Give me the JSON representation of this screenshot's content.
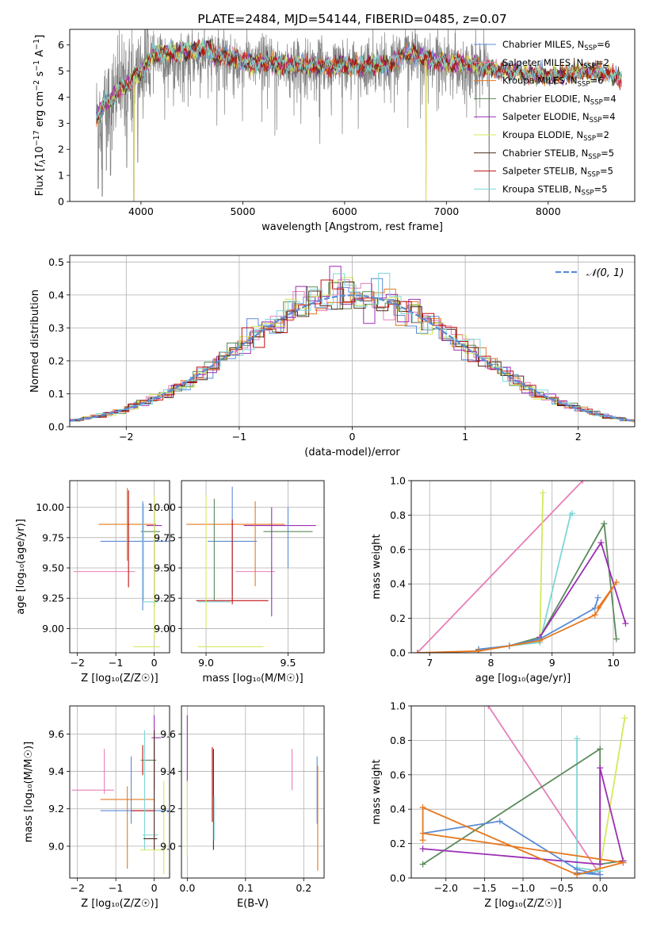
{
  "colors": {
    "chabrier_miles": "#5b8bd6",
    "salpeter_miles": "#e67fb8",
    "kroupa_miles": "#e6781e",
    "chabrier_elodie": "#5b8a5b",
    "salpeter_elodie": "#9a2fb4",
    "kroupa_elodie": "#d4e85a",
    "chabrier_stelib": "#4a2a1a",
    "salpeter_stelib": "#c01010",
    "kroupa_stelib": "#7fd6d6",
    "gray": "#808080",
    "gauss": "#5b8bd6"
  },
  "chart_data": [
    {
      "id": "spectrum",
      "type": "line",
      "title": "PLATE=2484, MJD=54144, FIBERID=0485, z=0.07",
      "xlabel": "wavelength [Angstrom, rest frame]",
      "ylabel_main": "Flux [",
      "ylabel_f": "f",
      "ylabel_sub": "λ",
      "ylabel_rest": "10",
      "ylabel_sup": "−17",
      "ylabel_units": " erg cm",
      "ylabel_sup2": "−2",
      "ylabel_s": " s",
      "ylabel_sup3": "−1",
      "ylabel_A": " A",
      "ylabel_sup4": "−1",
      "ylabel_close": "]",
      "xlim": [
        3300,
        8850
      ],
      "ylim": [
        0,
        6.6
      ],
      "xticks": [
        4000,
        5000,
        6000,
        7000,
        8000
      ],
      "yticks": [
        0,
        1,
        2,
        3,
        4,
        5,
        6
      ],
      "legend": [
        {
          "name": "Chabrier MILES, N",
          "sub": "SSP",
          "eq": "=6",
          "color": "chabrier_miles"
        },
        {
          "name": "Salpeter MILES, N",
          "sub": "SSP",
          "eq": "=2",
          "color": "salpeter_miles"
        },
        {
          "name": "Kroupa MILES, N",
          "sub": "SSP",
          "eq": "=6",
          "color": "kroupa_miles"
        },
        {
          "name": "Chabrier ELODIE, N",
          "sub": "SSP",
          "eq": "=4",
          "color": "chabrier_elodie"
        },
        {
          "name": "Salpeter ELODIE, N",
          "sub": "SSP",
          "eq": "=4",
          "color": "salpeter_elodie"
        },
        {
          "name": "Kroupa ELODIE, N",
          "sub": "SSP",
          "eq": "=2",
          "color": "kroupa_elodie"
        },
        {
          "name": "Chabrier STELIB, N",
          "sub": "SSP",
          "eq": "=5",
          "color": "chabrier_stelib"
        },
        {
          "name": "Salpeter STELIB, N",
          "sub": "SSP",
          "eq": "=5",
          "color": "salpeter_stelib"
        },
        {
          "name": "Kroupa STELIB, N",
          "sub": "SSP",
          "eq": "=5",
          "color": "kroupa_stelib"
        }
      ],
      "legend_loc": "right",
      "continuum": [
        [
          3560,
          3.3
        ],
        [
          3650,
          3.7
        ],
        [
          3800,
          4.3
        ],
        [
          3950,
          4.8
        ],
        [
          4100,
          5.4
        ],
        [
          4300,
          5.4
        ],
        [
          4500,
          5.5
        ],
        [
          4700,
          5.6
        ],
        [
          4900,
          5.5
        ],
        [
          5100,
          5.3
        ],
        [
          5300,
          5.3
        ],
        [
          5600,
          5.2
        ],
        [
          5900,
          5.2
        ],
        [
          6200,
          5.2
        ],
        [
          6500,
          5.3
        ],
        [
          6600,
          5.7
        ],
        [
          6800,
          5.5
        ],
        [
          7000,
          5.3
        ],
        [
          7200,
          5.3
        ],
        [
          7400,
          5.1
        ],
        [
          7600,
          5.0
        ],
        [
          7800,
          4.9
        ],
        [
          8000,
          4.8
        ],
        [
          8200,
          4.9
        ],
        [
          8400,
          5.0
        ],
        [
          8600,
          4.9
        ],
        [
          8720,
          4.7
        ]
      ],
      "noise_end": 7420,
      "data_start": 3560,
      "dips": [
        [
          3580,
          0.5
        ],
        [
          3620,
          0.2
        ],
        [
          3660,
          1.2
        ],
        [
          3700,
          1.0
        ],
        [
          3860,
          1.3
        ],
        [
          3930,
          0
        ],
        [
          3968,
          1.5
        ],
        [
          7420,
          0
        ]
      ],
      "model_dips": [
        [
          3930,
          0
        ],
        [
          6800,
          0
        ]
      ]
    },
    {
      "id": "hist",
      "type": "bar",
      "xlabel": "(data-model)/error",
      "ylabel": "Normed distribution",
      "xlim": [
        -2.5,
        2.5
      ],
      "ylim": [
        0,
        0.52
      ],
      "xticks": [
        -2,
        -1,
        0,
        1,
        2
      ],
      "yticks": [
        0.0,
        0.1,
        0.2,
        0.3,
        0.4,
        0.5
      ],
      "legend": {
        "name": "𝒩(0, 1)",
        "loc": "top-right"
      },
      "bin_width": 0.1
    },
    {
      "id": "age_z",
      "type": "scatter",
      "xlabel": "Z [log₁₀(Z/Z☉)]",
      "ylabel": "age  [log₁₀(age/yr)]",
      "xlim": [
        -2.2,
        0.4
      ],
      "ylim": [
        8.8,
        10.22
      ],
      "xticks": [
        -2,
        -1,
        0
      ],
      "yticks": [
        9.0,
        9.25,
        9.5,
        9.75,
        10.0
      ],
      "points": [
        {
          "x": -1.3,
          "y": 9.47,
          "xerr": 0.8,
          "yerr": 0.0,
          "color": "salpeter_miles"
        },
        {
          "x": -0.5,
          "y": 9.72,
          "xerr": 0.9,
          "yerr": 0.0,
          "color": "chabrier_miles"
        },
        {
          "x": -0.7,
          "y": 9.86,
          "xerr": 0.75,
          "yerr": 0.3,
          "color": "kroupa_miles"
        },
        {
          "x": -0.67,
          "y": 9.74,
          "xerr": 0.0,
          "yerr": 0.4,
          "color": "salpeter_stelib"
        },
        {
          "x": -0.1,
          "y": 9.8,
          "xerr": 0.25,
          "yerr": 0.0,
          "color": "chabrier_elodie"
        },
        {
          "x": -0.3,
          "y": 9.6,
          "xerr": 0.0,
          "yerr": 0.45,
          "color": "chabrier_miles"
        },
        {
          "x": 0.0,
          "y": 9.85,
          "xerr": 0.2,
          "yerr": 0.0,
          "color": "salpeter_elodie"
        },
        {
          "x": -0.28,
          "y": 9.63,
          "xerr": 0.0,
          "yerr": 0.4,
          "color": "kroupa_stelib"
        },
        {
          "x": 0.0,
          "y": 9.6,
          "xerr": 0.0,
          "yerr": 0.42,
          "color": "chabrier_stelib"
        },
        {
          "x": -0.1,
          "y": 9.22,
          "xerr": 0.2,
          "yerr": 0.0,
          "color": "kroupa_stelib"
        },
        {
          "x": 0.0,
          "y": 9.5,
          "xerr": 0.0,
          "yerr": 0.6,
          "color": "kroupa_elodie"
        },
        {
          "x": -0.2,
          "y": 8.85,
          "xerr": 0.35,
          "yerr": 0.0,
          "color": "kroupa_elodie"
        }
      ]
    },
    {
      "id": "age_mass",
      "type": "scatter",
      "xlabel": "mass [log₁₀(M/M☉)]",
      "ylabel": "",
      "xlim": [
        8.85,
        9.72
      ],
      "ylim": [
        8.8,
        10.22
      ],
      "xticks": [
        9.0,
        9.5
      ],
      "yticks": [
        9.0,
        9.25,
        9.5,
        9.75,
        10.0
      ],
      "points": [
        {
          "x": 9.18,
          "y": 9.86,
          "xerr": 0.3,
          "yerr": 0.0,
          "color": "kroupa_miles"
        },
        {
          "x": 9.45,
          "y": 9.85,
          "xerr": 0.22,
          "yerr": 0.0,
          "color": "salpeter_elodie"
        },
        {
          "x": 9.5,
          "y": 9.8,
          "xerr": 0.15,
          "yerr": 0.0,
          "color": "chabrier_elodie"
        },
        {
          "x": 9.16,
          "y": 9.72,
          "xerr": 0.15,
          "yerr": 0.0,
          "color": "chabrier_miles"
        },
        {
          "x": 9.3,
          "y": 9.47,
          "xerr": 0.12,
          "yerr": 0.0,
          "color": "salpeter_miles"
        },
        {
          "x": 9.16,
          "y": 9.23,
          "xerr": 0.22,
          "yerr": 0.0,
          "color": "salpeter_stelib"
        },
        {
          "x": 9.05,
          "y": 9.22,
          "xerr": 0.1,
          "yerr": 0.0,
          "color": "kroupa_stelib"
        },
        {
          "x": 9.15,
          "y": 8.85,
          "xerr": 0.2,
          "yerr": 0.0,
          "color": "kroupa_elodie"
        },
        {
          "x": 9.0,
          "y": 9.55,
          "xerr": 0.0,
          "yerr": 0.55,
          "color": "kroupa_elodie"
        },
        {
          "x": 9.05,
          "y": 9.65,
          "xerr": 0.0,
          "yerr": 0.42,
          "color": "chabrier_elodie"
        },
        {
          "x": 9.16,
          "y": 9.72,
          "xerr": 0.0,
          "yerr": 0.45,
          "color": "chabrier_miles"
        },
        {
          "x": 9.16,
          "y": 9.55,
          "xerr": 0.0,
          "yerr": 0.35,
          "color": "salpeter_stelib"
        },
        {
          "x": 9.4,
          "y": 9.55,
          "xerr": 0.0,
          "yerr": 0.45,
          "color": "salpeter_elodie"
        },
        {
          "x": 9.3,
          "y": 9.7,
          "xerr": 0.0,
          "yerr": 0.35,
          "color": "kroupa_miles"
        },
        {
          "x": 9.5,
          "y": 9.75,
          "xerr": 0.0,
          "yerr": 0.25,
          "color": "chabrier_miles"
        }
      ]
    },
    {
      "id": "mw_age",
      "type": "line",
      "xlabel": "age  [log₁₀(age/yr)]",
      "ylabel": "mass weight",
      "xlim": [
        6.7,
        10.35
      ],
      "ylim": [
        0,
        1.0
      ],
      "xticks": [
        7,
        8,
        9,
        10
      ],
      "yticks": [
        0.0,
        0.2,
        0.4,
        0.6,
        0.8,
        1.0
      ],
      "series": [
        {
          "color": "salpeter_miles",
          "x": [
            6.8,
            9.5
          ],
          "y": [
            0.0,
            1.0
          ]
        },
        {
          "color": "kroupa_elodie",
          "x": [
            8.8,
            8.85
          ],
          "y": [
            0.06,
            0.93
          ]
        },
        {
          "color": "kroupa_stelib",
          "x": [
            7.8,
            8.3,
            8.8,
            9.3,
            9.33
          ],
          "y": [
            0.02,
            0.04,
            0.06,
            0.8,
            0.81
          ]
        },
        {
          "color": "chabrier_elodie",
          "x": [
            7.8,
            8.3,
            8.8,
            9.85,
            10.05
          ],
          "y": [
            0.015,
            0.04,
            0.09,
            0.75,
            0.08
          ]
        },
        {
          "color": "salpeter_elodie",
          "x": [
            8.8,
            9.8,
            10.2
          ],
          "y": [
            0.09,
            0.64,
            0.17
          ]
        },
        {
          "color": "chabrier_miles",
          "x": [
            7.8,
            8.3,
            8.8,
            9.7,
            9.75
          ],
          "y": [
            0.02,
            0.04,
            0.08,
            0.26,
            0.32
          ]
        },
        {
          "color": "kroupa_miles",
          "x": [
            6.8,
            7.8,
            8.8,
            9.7,
            10.05,
            9.75
          ],
          "y": [
            0.0,
            0.01,
            0.07,
            0.22,
            0.41,
            0.26
          ]
        }
      ]
    },
    {
      "id": "mass_z",
      "type": "scatter",
      "xlabel": "Z [log₁₀(Z/Z☉)]",
      "ylabel": "mass [log₁₀(M/M☉)]",
      "xlim": [
        -2.2,
        0.4
      ],
      "ylim": [
        8.83,
        9.75
      ],
      "xticks": [
        -2,
        -1,
        0
      ],
      "yticks": [
        9.0,
        9.2,
        9.4,
        9.6
      ],
      "points": [
        {
          "x": -1.6,
          "y": 9.3,
          "xerr": 0.55,
          "yerr": 0.0,
          "color": "salpeter_miles"
        },
        {
          "x": -1.3,
          "y": 9.4,
          "xerr": 0.0,
          "yerr": 0.12,
          "color": "salpeter_miles"
        },
        {
          "x": -0.7,
          "y": 9.25,
          "xerr": 0.7,
          "yerr": 0.0,
          "color": "kroupa_miles"
        },
        {
          "x": -0.7,
          "y": 9.1,
          "xerr": 0.0,
          "yerr": 0.22,
          "color": "kroupa_miles"
        },
        {
          "x": -0.5,
          "y": 9.19,
          "xerr": 0.9,
          "yerr": 0.0,
          "color": "chabrier_miles"
        },
        {
          "x": -0.6,
          "y": 9.3,
          "xerr": 0.0,
          "yerr": 0.18,
          "color": "chabrier_miles"
        },
        {
          "x": -0.3,
          "y": 9.19,
          "xerr": 0.3,
          "yerr": 0.0,
          "color": "salpeter_stelib"
        },
        {
          "x": -0.3,
          "y": 9.46,
          "xerr": 0.0,
          "yerr": 0.08,
          "color": "salpeter_stelib"
        },
        {
          "x": -0.15,
          "y": 9.46,
          "xerr": 0.2,
          "yerr": 0.0,
          "color": "chabrier_elodie"
        },
        {
          "x": 0.05,
          "y": 9.58,
          "xerr": 0.12,
          "yerr": 0.0,
          "color": "salpeter_elodie"
        },
        {
          "x": 0.0,
          "y": 9.5,
          "xerr": 0.0,
          "yerr": 0.2,
          "color": "salpeter_elodie"
        },
        {
          "x": -0.1,
          "y": 9.06,
          "xerr": 0.2,
          "yerr": 0.0,
          "color": "kroupa_stelib"
        },
        {
          "x": -0.25,
          "y": 9.3,
          "xerr": 0.0,
          "yerr": 0.32,
          "color": "kroupa_stelib"
        },
        {
          "x": -0.1,
          "y": 9.04,
          "xerr": 0.18,
          "yerr": 0.0,
          "color": "chabrier_stelib"
        },
        {
          "x": 0.0,
          "y": 9.3,
          "xerr": 0.0,
          "yerr": 0.32,
          "color": "chabrier_stelib"
        },
        {
          "x": -0.05,
          "y": 8.98,
          "xerr": 0.32,
          "yerr": 0.0,
          "color": "kroupa_elodie"
        },
        {
          "x": 0.25,
          "y": 9.1,
          "xerr": 0.0,
          "yerr": 0.25,
          "color": "kroupa_elodie"
        }
      ]
    },
    {
      "id": "mass_ebv",
      "type": "scatter",
      "xlabel": "E(B-V)",
      "ylabel": "",
      "xlim": [
        -0.01,
        0.235
      ],
      "ylim": [
        8.83,
        9.75
      ],
      "xticks": [
        0.0,
        0.1,
        0.2
      ],
      "yticks": [
        9.0,
        9.2,
        9.4,
        9.6
      ],
      "points": [
        {
          "x": 0.0,
          "y": 9.52,
          "xerr": 0.0,
          "yerr": 0.18,
          "color": "salpeter_elodie"
        },
        {
          "x": 0.0,
          "y": 9.15,
          "xerr": 0.0,
          "yerr": 0.2,
          "color": "kroupa_elodie"
        },
        {
          "x": 0.043,
          "y": 9.33,
          "xerr": 0.0,
          "yerr": 0.2,
          "color": "salpeter_stelib"
        },
        {
          "x": 0.045,
          "y": 9.25,
          "xerr": 0.0,
          "yerr": 0.27,
          "color": "chabrier_stelib"
        },
        {
          "x": 0.046,
          "y": 9.15,
          "xerr": 0.0,
          "yerr": 0.12,
          "color": "kroupa_stelib"
        },
        {
          "x": 0.18,
          "y": 9.41,
          "xerr": 0.0,
          "yerr": 0.11,
          "color": "salpeter_miles"
        },
        {
          "x": 0.223,
          "y": 9.3,
          "xerr": 0.0,
          "yerr": 0.18,
          "color": "chabrier_miles"
        },
        {
          "x": 0.224,
          "y": 9.15,
          "xerr": 0.0,
          "yerr": 0.28,
          "color": "kroupa_miles"
        }
      ]
    },
    {
      "id": "mw_z",
      "type": "line",
      "xlabel": "Z [log₁₀(Z/Z☉)]",
      "ylabel": "mass weight",
      "xlim": [
        -2.45,
        0.45
      ],
      "ylim": [
        0,
        1.0
      ],
      "xticks": [
        -2.0,
        -1.5,
        -1.0,
        -0.5,
        0.0
      ],
      "yticks": [
        0.0,
        0.2,
        0.4,
        0.6,
        0.8,
        1.0
      ],
      "series": [
        {
          "color": "salpeter_miles",
          "x": [
            -1.45,
            0.0
          ],
          "y": [
            1.0,
            0.02
          ]
        },
        {
          "color": "kroupa_elodie",
          "x": [
            0.0,
            0.32
          ],
          "y": [
            0.06,
            0.93
          ]
        },
        {
          "color": "kroupa_stelib",
          "x": [
            -0.3,
            -0.3,
            0.0,
            -0.3
          ],
          "y": [
            0.81,
            0.02,
            0.04,
            0.06
          ]
        },
        {
          "color": "chabrier_elodie",
          "x": [
            -2.3,
            0.0,
            0.0,
            0.3
          ],
          "y": [
            0.08,
            0.75,
            0.08,
            0.1
          ]
        },
        {
          "color": "salpeter_elodie",
          "x": [
            -2.3,
            0.0,
            0.0,
            0.3,
            0.3
          ],
          "y": [
            0.17,
            0.08,
            0.64,
            0.1,
            0.09
          ]
        },
        {
          "color": "chabrier_miles",
          "x": [
            -2.3,
            -1.3,
            -0.3,
            0.0,
            -0.3
          ],
          "y": [
            0.26,
            0.33,
            0.05,
            0.02,
            0.03
          ]
        },
        {
          "color": "kroupa_miles",
          "x": [
            -2.3,
            -2.3,
            -0.3,
            0.3,
            -2.3
          ],
          "y": [
            0.22,
            0.41,
            0.02,
            0.09,
            0.26
          ]
        }
      ]
    }
  ]
}
